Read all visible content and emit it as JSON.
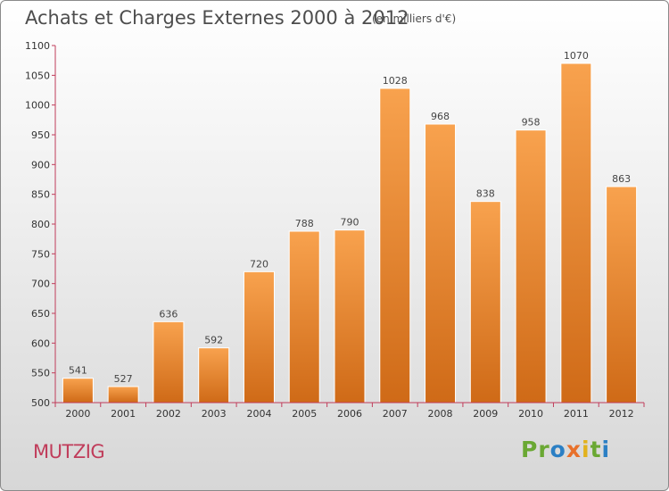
{
  "title": "Achats et Charges Externes 2000 à 2012",
  "subtitle": "(en milliers d'€)",
  "commune": "MUTZIG",
  "logo": {
    "parts": [
      "P",
      "r",
      "o",
      "x",
      "i",
      "t",
      "i"
    ]
  },
  "colors": {
    "bar_top": "#f8a24e",
    "bar_bottom": "#cf6a17",
    "axis": "#c03c5a",
    "commune": "#c03c5a"
  },
  "chart_data": {
    "type": "bar",
    "categories": [
      "2000",
      "2001",
      "2002",
      "2003",
      "2004",
      "2005",
      "2006",
      "2007",
      "2008",
      "2009",
      "2010",
      "2011",
      "2012"
    ],
    "values": [
      541,
      527,
      636,
      592,
      720,
      788,
      790,
      1028,
      968,
      838,
      958,
      1070,
      863
    ],
    "ylim": [
      500,
      1100
    ],
    "yticks": [
      500,
      550,
      600,
      650,
      700,
      750,
      800,
      850,
      900,
      950,
      1000,
      1050,
      1100
    ],
    "grid": false,
    "data_labels": true
  }
}
